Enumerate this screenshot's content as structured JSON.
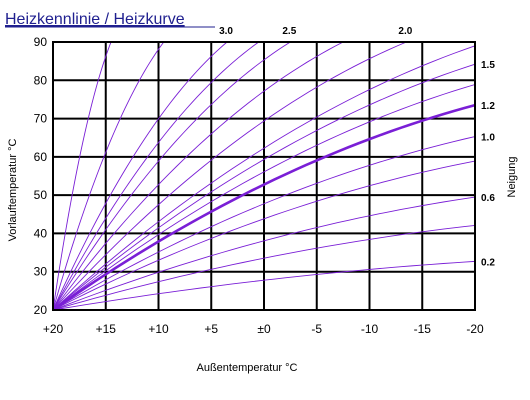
{
  "chart_data": {
    "type": "line",
    "title": "Heizkennlinie / Heizkurve",
    "xlabel": "Außentemperatur °C",
    "ylabel": "Vorlauftemperatur °C",
    "right_label": "Neigung",
    "x_range": [
      20,
      -20
    ],
    "y_range": [
      20,
      90
    ],
    "grid": true,
    "line_color": "#7a1fd6",
    "highlight_color": "#7a1fd6",
    "x_ticks": [
      {
        "value": 20,
        "label": "+20"
      },
      {
        "value": 15,
        "label": "+15"
      },
      {
        "value": 10,
        "label": "+10"
      },
      {
        "value": 5,
        "label": "+5"
      },
      {
        "value": 0,
        "label": "±0"
      },
      {
        "value": -5,
        "label": "-5"
      },
      {
        "value": -10,
        "label": "-10"
      },
      {
        "value": -15,
        "label": "-15"
      },
      {
        "value": -20,
        "label": "-20"
      }
    ],
    "y_ticks": [
      {
        "value": 20,
        "label": "20"
      },
      {
        "value": 30,
        "label": "30"
      },
      {
        "value": 40,
        "label": "40"
      },
      {
        "value": 50,
        "label": "50"
      },
      {
        "value": 60,
        "label": "60"
      },
      {
        "value": 70,
        "label": "70"
      },
      {
        "value": 80,
        "label": "80"
      },
      {
        "value": 90,
        "label": "90"
      }
    ],
    "curves": [
      {
        "slope": 0.2,
        "label": "0.2",
        "highlight": false,
        "end_y": 32.7
      },
      {
        "slope": 0.4,
        "label": "",
        "highlight": false,
        "end_y": 42.1
      },
      {
        "slope": 0.6,
        "label": "0.6",
        "highlight": false,
        "end_y": 49.5
      },
      {
        "slope": 0.8,
        "label": "",
        "highlight": false,
        "end_y": 58.9
      },
      {
        "slope": 1.0,
        "label": "1.0",
        "highlight": false,
        "end_y": 65.3
      },
      {
        "slope": 1.2,
        "label": "1.2",
        "highlight": true,
        "end_y": 73.5
      },
      {
        "slope": 1.4,
        "label": "",
        "highlight": false,
        "end_y": 78.9
      },
      {
        "slope": 1.5,
        "label": "1.5",
        "highlight": false,
        "end_y": 84.2
      },
      {
        "slope": 1.75,
        "label": "",
        "highlight": false,
        "x_end": -20,
        "end_y": 89.0
      },
      {
        "slope": 2.0,
        "label": "2.0",
        "highlight": false,
        "x_end": -13.5,
        "end_y": 90
      },
      {
        "slope": 2.25,
        "label": "",
        "highlight": false,
        "x_end": -7.5,
        "end_y": 90
      },
      {
        "slope": 2.5,
        "label": "2.5",
        "highlight": false,
        "x_end": -2.5,
        "end_y": 90
      },
      {
        "slope": 2.75,
        "label": "",
        "highlight": false,
        "x_end": 0.5,
        "end_y": 90
      },
      {
        "slope": 3.0,
        "label": "3.0",
        "highlight": false,
        "x_end": 3.5,
        "end_y": 90
      },
      {
        "slope": 3.5,
        "label": "",
        "highlight": false,
        "x_end": 9.5,
        "end_y": 90
      },
      {
        "slope": 4.0,
        "label": "",
        "highlight": false,
        "x_end": 14.5,
        "end_y": 90
      }
    ]
  }
}
